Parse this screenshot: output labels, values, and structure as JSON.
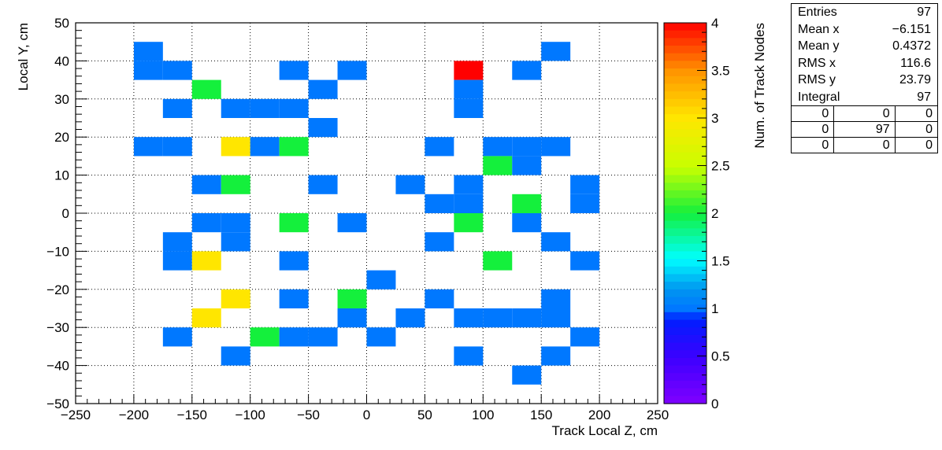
{
  "chart_data": {
    "type": "heatmap",
    "xlabel": "Track Local Z, cm",
    "ylabel": "Local Y, cm",
    "zlabel": "Num. of Track Nodes",
    "xlim": [
      -250,
      250
    ],
    "ylim": [
      -50,
      50
    ],
    "zlim": [
      0,
      4
    ],
    "x_ticks": [
      -250,
      -200,
      -150,
      -100,
      -50,
      0,
      50,
      100,
      150,
      200,
      250
    ],
    "y_ticks": [
      -50,
      -40,
      -30,
      -20,
      -10,
      0,
      10,
      20,
      30,
      40,
      50
    ],
    "z_ticks": [
      "0",
      "0.5",
      "1",
      "1.5",
      "2",
      "2.5",
      "3",
      "3.5",
      "4"
    ],
    "bin_width_x": 25,
    "bin_width_y": 5,
    "grid": true,
    "cells": [
      {
        "x": -187.5,
        "y": 42.5,
        "v": 1
      },
      {
        "x": 162.5,
        "y": 42.5,
        "v": 1
      },
      {
        "x": -187.5,
        "y": 37.5,
        "v": 1
      },
      {
        "x": -162.5,
        "y": 37.5,
        "v": 1
      },
      {
        "x": -62.5,
        "y": 37.5,
        "v": 1
      },
      {
        "x": -12.5,
        "y": 37.5,
        "v": 1
      },
      {
        "x": 87.5,
        "y": 37.5,
        "v": 4
      },
      {
        "x": 137.5,
        "y": 37.5,
        "v": 1
      },
      {
        "x": -137.5,
        "y": 32.5,
        "v": 2
      },
      {
        "x": -37.5,
        "y": 32.5,
        "v": 1
      },
      {
        "x": 87.5,
        "y": 32.5,
        "v": 1
      },
      {
        "x": -162.5,
        "y": 27.5,
        "v": 1
      },
      {
        "x": -112.5,
        "y": 27.5,
        "v": 1
      },
      {
        "x": -87.5,
        "y": 27.5,
        "v": 1
      },
      {
        "x": -62.5,
        "y": 27.5,
        "v": 1
      },
      {
        "x": 87.5,
        "y": 27.5,
        "v": 1
      },
      {
        "x": -37.5,
        "y": 22.5,
        "v": 1
      },
      {
        "x": -187.5,
        "y": 17.5,
        "v": 1
      },
      {
        "x": -162.5,
        "y": 17.5,
        "v": 1
      },
      {
        "x": -112.5,
        "y": 17.5,
        "v": 3
      },
      {
        "x": -87.5,
        "y": 17.5,
        "v": 1
      },
      {
        "x": -62.5,
        "y": 17.5,
        "v": 2
      },
      {
        "x": 62.5,
        "y": 17.5,
        "v": 1
      },
      {
        "x": 112.5,
        "y": 17.5,
        "v": 1
      },
      {
        "x": 137.5,
        "y": 17.5,
        "v": 1
      },
      {
        "x": 162.5,
        "y": 17.5,
        "v": 1
      },
      {
        "x": 112.5,
        "y": 12.5,
        "v": 2
      },
      {
        "x": 137.5,
        "y": 12.5,
        "v": 1
      },
      {
        "x": -137.5,
        "y": 7.5,
        "v": 1
      },
      {
        "x": -112.5,
        "y": 7.5,
        "v": 2
      },
      {
        "x": -37.5,
        "y": 7.5,
        "v": 1
      },
      {
        "x": 37.5,
        "y": 7.5,
        "v": 1
      },
      {
        "x": 87.5,
        "y": 7.5,
        "v": 1
      },
      {
        "x": 187.5,
        "y": 7.5,
        "v": 1
      },
      {
        "x": 62.5,
        "y": 2.5,
        "v": 1
      },
      {
        "x": 87.5,
        "y": 2.5,
        "v": 1
      },
      {
        "x": 137.5,
        "y": 2.5,
        "v": 2
      },
      {
        "x": 187.5,
        "y": 2.5,
        "v": 1
      },
      {
        "x": -137.5,
        "y": -2.5,
        "v": 1
      },
      {
        "x": -112.5,
        "y": -2.5,
        "v": 1
      },
      {
        "x": -62.5,
        "y": -2.5,
        "v": 2
      },
      {
        "x": -12.5,
        "y": -2.5,
        "v": 1
      },
      {
        "x": 87.5,
        "y": -2.5,
        "v": 2
      },
      {
        "x": 137.5,
        "y": -2.5,
        "v": 1
      },
      {
        "x": -162.5,
        "y": -7.5,
        "v": 1
      },
      {
        "x": -112.5,
        "y": -7.5,
        "v": 1
      },
      {
        "x": 62.5,
        "y": -7.5,
        "v": 1
      },
      {
        "x": 162.5,
        "y": -7.5,
        "v": 1
      },
      {
        "x": -162.5,
        "y": -12.5,
        "v": 1
      },
      {
        "x": -137.5,
        "y": -12.5,
        "v": 3
      },
      {
        "x": -62.5,
        "y": -12.5,
        "v": 1
      },
      {
        "x": 112.5,
        "y": -12.5,
        "v": 2
      },
      {
        "x": 187.5,
        "y": -12.5,
        "v": 1
      },
      {
        "x": 12.5,
        "y": -17.5,
        "v": 1
      },
      {
        "x": -112.5,
        "y": -22.5,
        "v": 3
      },
      {
        "x": -62.5,
        "y": -22.5,
        "v": 1
      },
      {
        "x": -12.5,
        "y": -22.5,
        "v": 2
      },
      {
        "x": 62.5,
        "y": -22.5,
        "v": 1
      },
      {
        "x": 162.5,
        "y": -22.5,
        "v": 1
      },
      {
        "x": -137.5,
        "y": -27.5,
        "v": 3
      },
      {
        "x": -12.5,
        "y": -27.5,
        "v": 1
      },
      {
        "x": 37.5,
        "y": -27.5,
        "v": 1
      },
      {
        "x": 87.5,
        "y": -27.5,
        "v": 1
      },
      {
        "x": 112.5,
        "y": -27.5,
        "v": 1
      },
      {
        "x": 137.5,
        "y": -27.5,
        "v": 1
      },
      {
        "x": 162.5,
        "y": -27.5,
        "v": 1
      },
      {
        "x": -162.5,
        "y": -32.5,
        "v": 1
      },
      {
        "x": -87.5,
        "y": -32.5,
        "v": 2
      },
      {
        "x": -62.5,
        "y": -32.5,
        "v": 1
      },
      {
        "x": -37.5,
        "y": -32.5,
        "v": 1
      },
      {
        "x": 12.5,
        "y": -32.5,
        "v": 1
      },
      {
        "x": 187.5,
        "y": -32.5,
        "v": 1
      },
      {
        "x": -112.5,
        "y": -37.5,
        "v": 1
      },
      {
        "x": 87.5,
        "y": -37.5,
        "v": 1
      },
      {
        "x": 162.5,
        "y": -37.5,
        "v": 1
      },
      {
        "x": 137.5,
        "y": -42.5,
        "v": 1
      }
    ]
  },
  "stats": {
    "rows": [
      {
        "label": "Entries",
        "value": "97"
      },
      {
        "label": "Mean x",
        "value": "−6.151"
      },
      {
        "label": "Mean y",
        "value": "0.4372"
      },
      {
        "label": "RMS x",
        "value": "116.6"
      },
      {
        "label": "RMS y",
        "value": "23.79"
      },
      {
        "label": "Integral",
        "value": "97"
      }
    ],
    "grid": [
      [
        "0",
        "0",
        "0"
      ],
      [
        "0",
        "97",
        "0"
      ],
      [
        "0",
        "0",
        "0"
      ]
    ]
  }
}
